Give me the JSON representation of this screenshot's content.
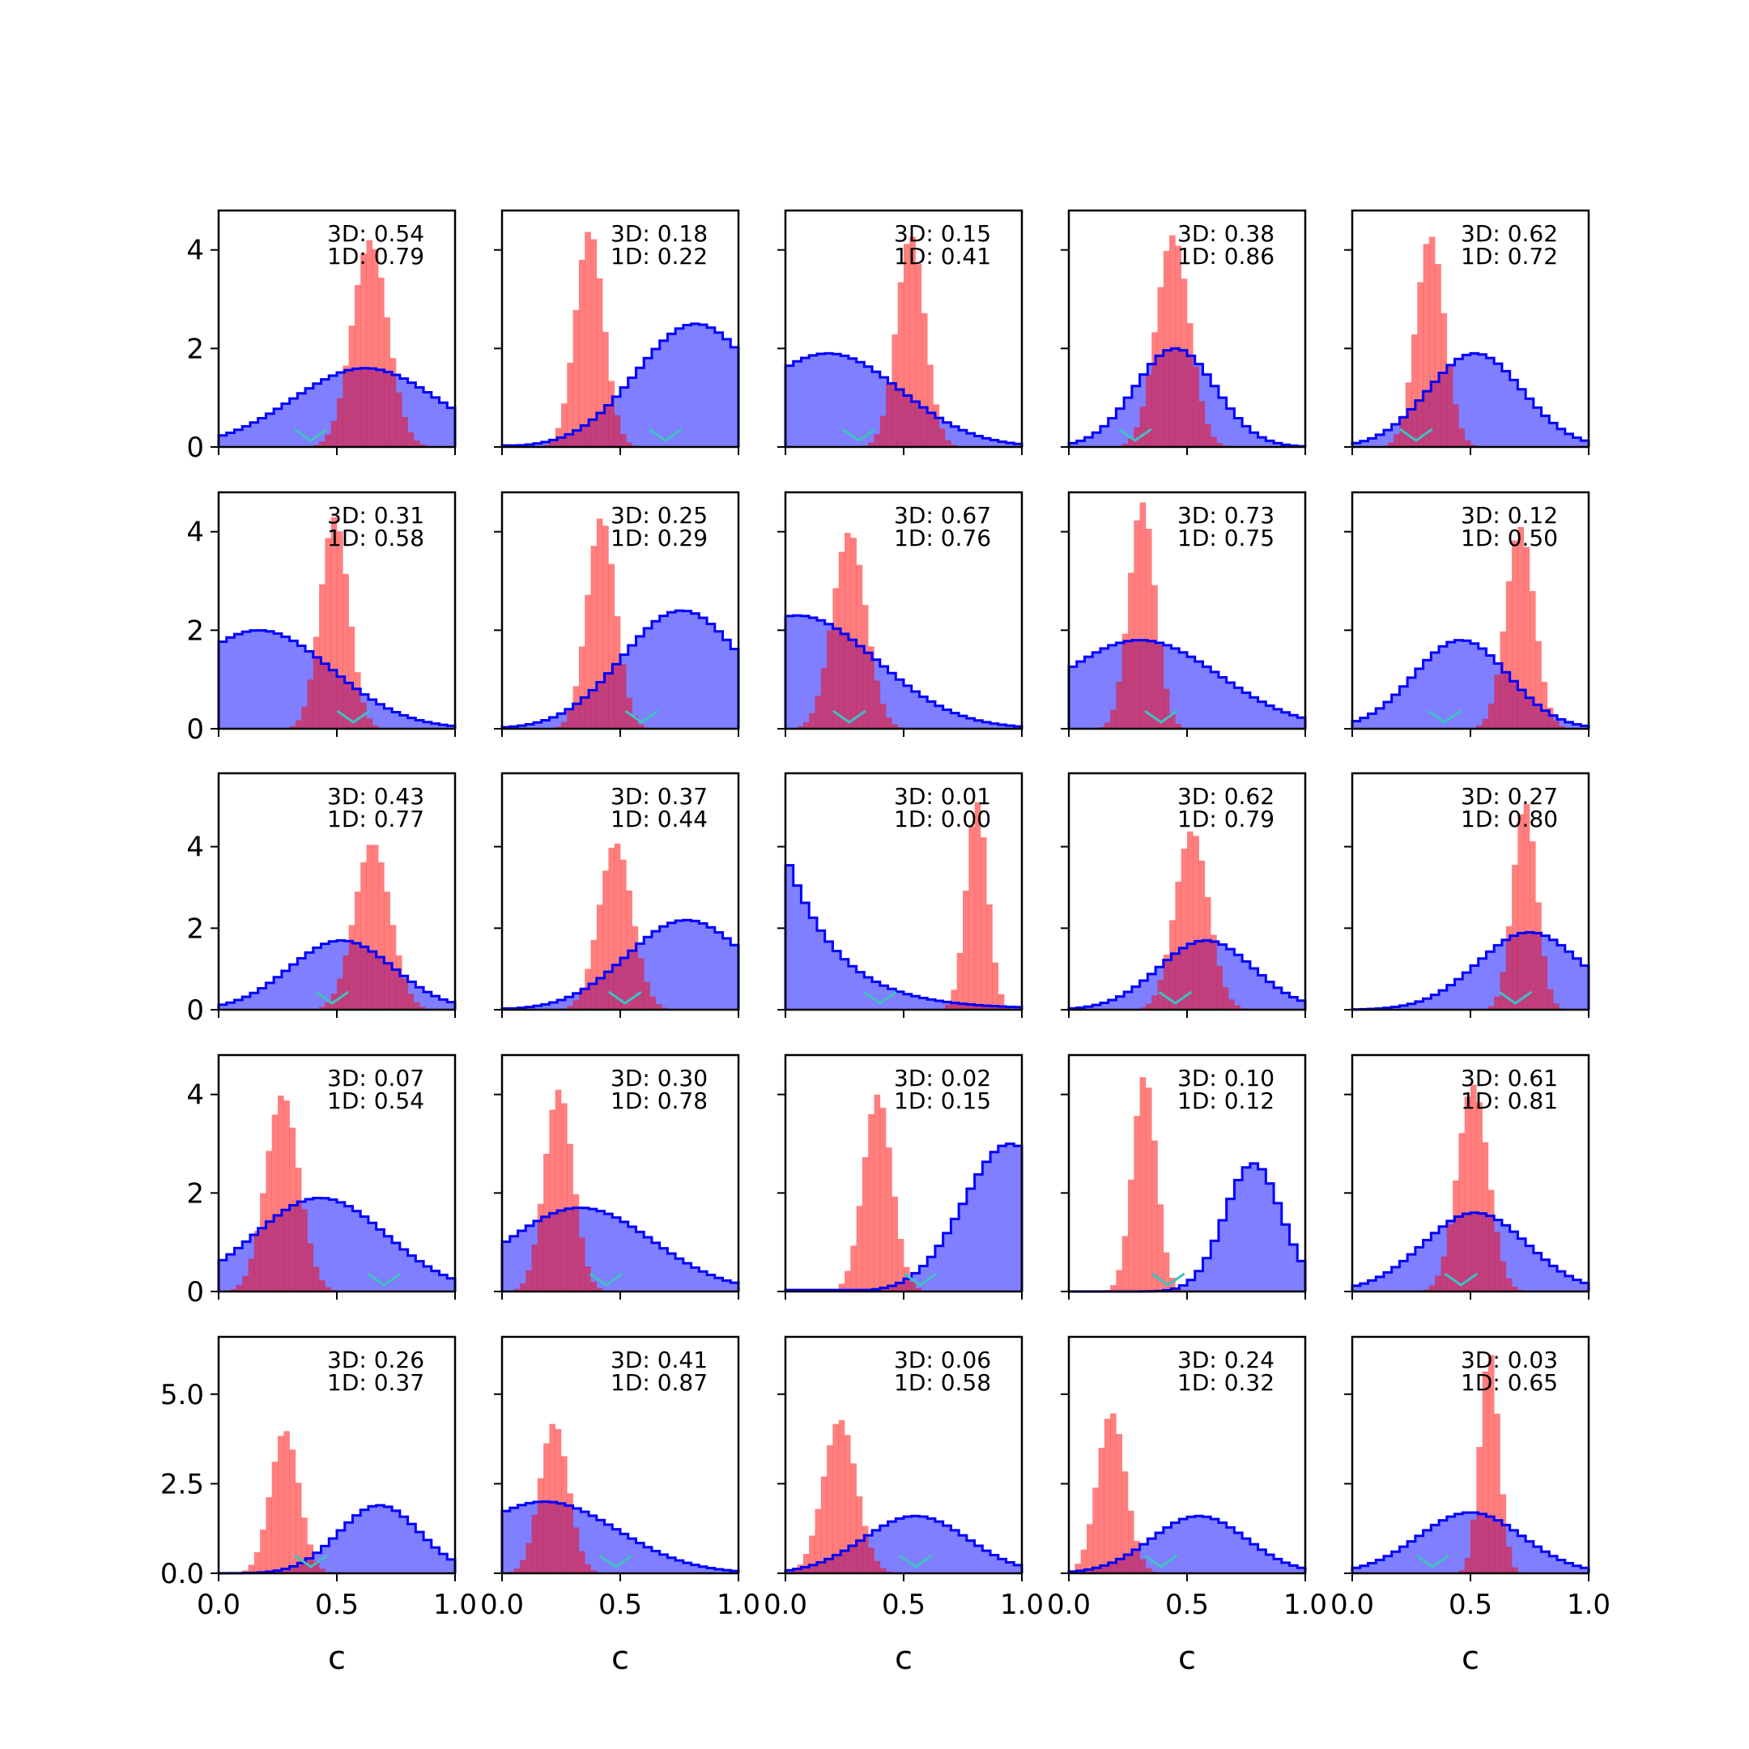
{
  "figure": {
    "xlabel": "c",
    "colors": {
      "blue_fill": "#0000ff",
      "blue_line": "#0000ff",
      "red_fill": "#ff0000",
      "marker": "#40c0c0"
    }
  },
  "chart_data": {
    "type": "grid_of_histograms",
    "rows": 5,
    "cols": 5,
    "xlabel": "c",
    "xlim": [
      0,
      1
    ],
    "xticks": [
      "0.0",
      "0.5",
      "1.0"
    ],
    "row_ylims": [
      [
        0,
        4.8
      ],
      [
        0,
        4.8
      ],
      [
        0,
        5.8
      ],
      [
        0,
        4.8
      ],
      [
        0,
        6.6
      ]
    ],
    "row_yticks": [
      {
        "values": [
          0,
          2,
          4
        ],
        "labels": [
          "0",
          "2",
          "4"
        ]
      },
      {
        "values": [
          0,
          2,
          4
        ],
        "labels": [
          "0",
          "2",
          "4"
        ]
      },
      {
        "values": [
          0,
          2,
          4
        ],
        "labels": [
          "0",
          "2",
          "4"
        ]
      },
      {
        "values": [
          0,
          2,
          4
        ],
        "labels": [
          "0",
          "2",
          "4"
        ]
      },
      {
        "values": [
          0,
          2.5,
          5.0
        ],
        "labels": [
          "0.0",
          "2.5",
          "5.0"
        ]
      }
    ],
    "panels": [
      {
        "s3d": "3D: 0.54",
        "s1d": "1D: 0.79",
        "blue": {
          "type": "skew",
          "center": 0.62,
          "width": 0.55,
          "peak": 1.6,
          "range": [
            0.0,
            1.0
          ]
        },
        "red": {
          "center": 0.64,
          "sd": 0.075,
          "peak": 4.2
        },
        "marker": 0.39
      },
      {
        "s3d": "3D: 0.18",
        "s1d": "1D: 0.22",
        "blue": {
          "type": "skew",
          "center": 0.82,
          "width": 0.45,
          "peak": 2.5,
          "range": [
            0.0,
            1.0
          ]
        },
        "red": {
          "center": 0.37,
          "sd": 0.06,
          "peak": 4.4
        },
        "marker": 0.69
      },
      {
        "s3d": "3D: 0.15",
        "s1d": "1D: 0.41",
        "blue": {
          "type": "skew",
          "center": 0.18,
          "width": 0.55,
          "peak": 1.9,
          "range": [
            0.0,
            1.0
          ]
        },
        "red": {
          "center": 0.53,
          "sd": 0.06,
          "peak": 4.3
        },
        "marker": 0.31
      },
      {
        "s3d": "3D: 0.38",
        "s1d": "1D: 0.86",
        "blue": {
          "type": "gauss",
          "center": 0.45,
          "sd": 0.17,
          "peak": 2.0,
          "range": [
            0.0,
            1.0
          ]
        },
        "red": {
          "center": 0.44,
          "sd": 0.07,
          "peak": 4.3
        },
        "marker": 0.28
      },
      {
        "s3d": "3D: 0.62",
        "s1d": "1D: 0.72",
        "blue": {
          "type": "gauss",
          "center": 0.52,
          "sd": 0.2,
          "peak": 1.9,
          "range": [
            0.0,
            1.0
          ]
        },
        "red": {
          "center": 0.33,
          "sd": 0.06,
          "peak": 4.3
        },
        "marker": 0.27
      },
      {
        "s3d": "3D: 0.31",
        "s1d": "1D: 0.58",
        "blue": {
          "type": "skew",
          "center": 0.17,
          "width": 0.55,
          "peak": 2.0,
          "range": [
            0.0,
            1.0
          ]
        },
        "red": {
          "center": 0.49,
          "sd": 0.06,
          "peak": 4.3
        },
        "marker": 0.57
      },
      {
        "s3d": "3D: 0.25",
        "s1d": "1D: 0.29",
        "blue": {
          "type": "skew",
          "center": 0.76,
          "width": 0.45,
          "peak": 2.4,
          "range": [
            0.0,
            1.0
          ]
        },
        "red": {
          "center": 0.42,
          "sd": 0.06,
          "peak": 4.3
        },
        "marker": 0.59
      },
      {
        "s3d": "3D: 0.67",
        "s1d": "1D: 0.76",
        "blue": {
          "type": "skew",
          "center": 0.05,
          "width": 0.6,
          "peak": 2.3,
          "range": [
            0.0,
            1.0
          ]
        },
        "red": {
          "center": 0.27,
          "sd": 0.07,
          "peak": 4.0
        },
        "marker": 0.27
      },
      {
        "s3d": "3D: 0.73",
        "s1d": "1D: 0.75",
        "blue": {
          "type": "skew",
          "center": 0.3,
          "width": 0.6,
          "peak": 1.8,
          "range": [
            0.0,
            1.0
          ]
        },
        "red": {
          "center": 0.31,
          "sd": 0.055,
          "peak": 4.6
        },
        "marker": 0.39
      },
      {
        "s3d": "3D: 0.12",
        "s1d": "1D: 0.50",
        "blue": {
          "type": "gauss",
          "center": 0.46,
          "sd": 0.2,
          "peak": 1.8,
          "range": [
            0.0,
            1.0
          ]
        },
        "red": {
          "center": 0.71,
          "sd": 0.06,
          "peak": 4.1
        },
        "marker": 0.39
      },
      {
        "s3d": "3D: 0.43",
        "s1d": "1D: 0.77",
        "blue": {
          "type": "gauss",
          "center": 0.52,
          "sd": 0.22,
          "peak": 1.7,
          "range": [
            0.0,
            1.0
          ]
        },
        "red": {
          "center": 0.65,
          "sd": 0.075,
          "peak": 4.1
        },
        "marker": 0.48
      },
      {
        "s3d": "3D: 0.37",
        "s1d": "1D: 0.44",
        "blue": {
          "type": "skew",
          "center": 0.78,
          "width": 0.45,
          "peak": 2.2,
          "range": [
            0.0,
            1.0
          ]
        },
        "red": {
          "center": 0.48,
          "sd": 0.07,
          "peak": 4.1
        },
        "marker": 0.52
      },
      {
        "s3d": "3D: 0.01",
        "s1d": "1D: 0.00",
        "blue": {
          "type": "decay",
          "center": 0.0,
          "width": 0.22,
          "peak": 3.8,
          "range": [
            0.0,
            1.0
          ]
        },
        "red": {
          "center": 0.81,
          "sd": 0.045,
          "peak": 5.1
        },
        "marker": 0.4
      },
      {
        "s3d": "3D: 0.62",
        "s1d": "1D: 0.79",
        "blue": {
          "type": "gauss",
          "center": 0.58,
          "sd": 0.2,
          "peak": 1.7,
          "range": [
            0.0,
            1.0
          ]
        },
        "red": {
          "center": 0.52,
          "sd": 0.07,
          "peak": 4.4
        },
        "marker": 0.45
      },
      {
        "s3d": "3D: 0.27",
        "s1d": "1D: 0.80",
        "blue": {
          "type": "gauss",
          "center": 0.75,
          "sd": 0.22,
          "peak": 1.9,
          "range": [
            0.0,
            1.0
          ]
        },
        "red": {
          "center": 0.73,
          "sd": 0.05,
          "peak": 5.1
        },
        "marker": 0.69
      },
      {
        "s3d": "3D: 0.07",
        "s1d": "1D: 0.54",
        "blue": {
          "type": "skew",
          "center": 0.43,
          "width": 0.5,
          "peak": 1.9,
          "range": [
            0.0,
            1.0
          ]
        },
        "red": {
          "center": 0.27,
          "sd": 0.07,
          "peak": 4.0
        },
        "marker": 0.7
      },
      {
        "s3d": "3D: 0.30",
        "s1d": "1D: 0.78",
        "blue": {
          "type": "skew",
          "center": 0.33,
          "width": 0.55,
          "peak": 1.7,
          "range": [
            0.0,
            1.0
          ]
        },
        "red": {
          "center": 0.24,
          "sd": 0.06,
          "peak": 4.1
        },
        "marker": 0.44
      },
      {
        "s3d": "3D: 0.02",
        "s1d": "1D: 0.15",
        "blue": {
          "type": "skew",
          "center": 0.95,
          "width": 0.35,
          "peak": 3.0,
          "range": [
            0.0,
            1.0
          ]
        },
        "red": {
          "center": 0.39,
          "sd": 0.06,
          "peak": 4.0
        },
        "marker": 0.57
      },
      {
        "s3d": "3D: 0.10",
        "s1d": "1D: 0.12",
        "blue": {
          "type": "gauss",
          "center": 0.78,
          "sd": 0.12,
          "peak": 2.6,
          "range": [
            0.0,
            1.0
          ]
        },
        "red": {
          "center": 0.32,
          "sd": 0.05,
          "peak": 4.4
        },
        "marker": 0.42
      },
      {
        "s3d": "3D: 0.61",
        "s1d": "1D: 0.81",
        "blue": {
          "type": "gauss",
          "center": 0.52,
          "sd": 0.22,
          "peak": 1.6,
          "range": [
            0.0,
            1.0
          ]
        },
        "red": {
          "center": 0.51,
          "sd": 0.065,
          "peak": 4.2
        },
        "marker": 0.46
      },
      {
        "s3d": "3D: 0.26",
        "s1d": "1D: 0.37",
        "blue": {
          "type": "gauss",
          "center": 0.68,
          "sd": 0.17,
          "peak": 1.9,
          "range": [
            0.0,
            1.0
          ]
        },
        "red": {
          "center": 0.28,
          "sd": 0.06,
          "peak": 4.0
        },
        "marker": 0.39
      },
      {
        "s3d": "3D: 0.41",
        "s1d": "1D: 0.87",
        "blue": {
          "type": "skew",
          "center": 0.18,
          "width": 0.55,
          "peak": 2.0,
          "range": [
            0.0,
            1.0
          ]
        },
        "red": {
          "center": 0.22,
          "sd": 0.06,
          "peak": 4.2
        },
        "marker": 0.48
      },
      {
        "s3d": "3D: 0.06",
        "s1d": "1D: 0.58",
        "blue": {
          "type": "gauss",
          "center": 0.55,
          "sd": 0.22,
          "peak": 1.6,
          "range": [
            0.0,
            1.0
          ]
        },
        "red": {
          "center": 0.23,
          "sd": 0.07,
          "peak": 4.3
        },
        "marker": 0.55
      },
      {
        "s3d": "3D: 0.24",
        "s1d": "1D: 0.32",
        "blue": {
          "type": "gauss",
          "center": 0.55,
          "sd": 0.2,
          "peak": 1.6,
          "range": [
            0.0,
            1.0
          ]
        },
        "red": {
          "center": 0.18,
          "sd": 0.06,
          "peak": 4.5
        },
        "marker": 0.39
      },
      {
        "s3d": "3D: 0.03",
        "s1d": "1D: 0.65",
        "blue": {
          "type": "gauss",
          "center": 0.5,
          "sd": 0.22,
          "peak": 1.7,
          "range": [
            0.0,
            1.0
          ]
        },
        "red": {
          "center": 0.58,
          "sd": 0.04,
          "peak": 6.2
        },
        "marker": 0.34
      }
    ]
  }
}
